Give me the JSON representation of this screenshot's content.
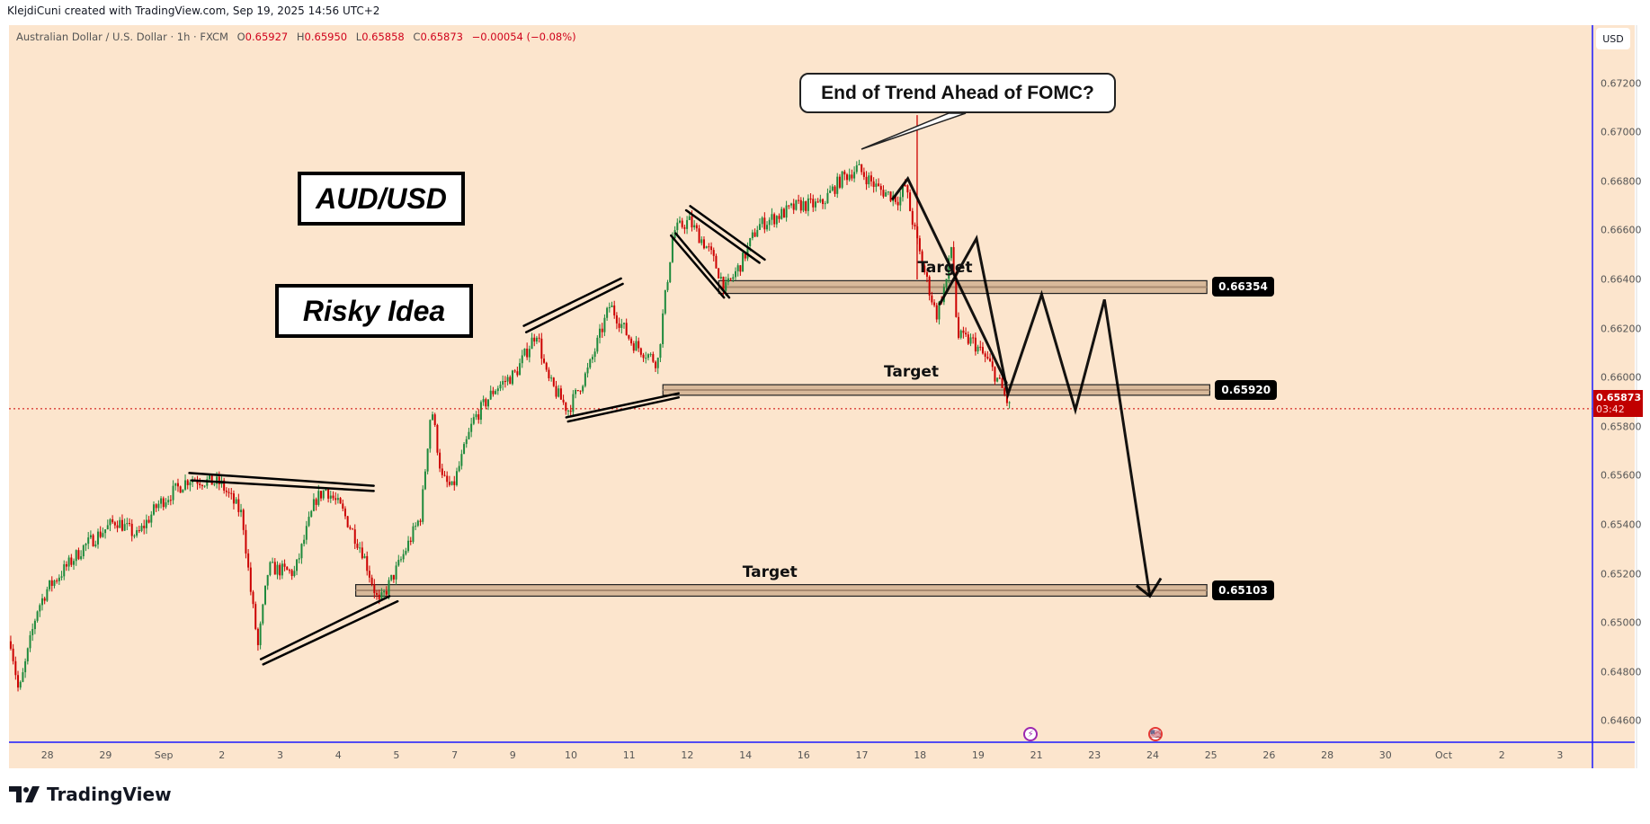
{
  "attribution": "KlejdiCuni created with TradingView.com, Sep 19, 2025 14:56 UTC+2",
  "legend": {
    "symbol": "Australian Dollar / U.S. Dollar · 1h · FXCM",
    "open_label": "O",
    "open": "0.65927",
    "high_label": "H",
    "high": "0.65950",
    "low_label": "L",
    "low": "0.65858",
    "close_label": "C",
    "close": "0.65873",
    "change": "−0.00054 (−0.08%)"
  },
  "currency_button": "USD",
  "annotations": {
    "pair_title": "AUD/USD",
    "risk_note": "Risky Idea",
    "callout": "End of Trend Ahead of FOMC?",
    "target_label": "Target"
  },
  "current_price": {
    "value": "0.65873",
    "countdown": "03:42"
  },
  "levels": [
    {
      "label": "0.66354",
      "price": 0.66369,
      "top": 0.66395,
      "bottom": 0.66343,
      "start_day": 11.54,
      "end_day": 19.93
    },
    {
      "label": "0.65920",
      "price": 0.6595,
      "top": 0.65971,
      "bottom": 0.65928,
      "start_day": 10.58,
      "end_day": 19.98
    },
    {
      "label": "0.65103",
      "price": 0.65132,
      "top": 0.65156,
      "bottom": 0.65109,
      "start_day": 5.3,
      "end_day": 19.93
    }
  ],
  "events": [
    {
      "icon": "lightning-icon",
      "glyph": "⚡",
      "color": "#9c27b0",
      "day": 16.9
    },
    {
      "icon": "us-flag-icon",
      "glyph": "🇺🇸",
      "color": "#e53935",
      "day": 19.05
    }
  ],
  "colors": {
    "up": "#1e8a3c",
    "down": "#cc0000",
    "background": "#fce5cd",
    "zone": "#d8b99a",
    "accent": "#2962ff"
  },
  "footer_brand": "TradingView",
  "chart_data": {
    "type": "candlestick",
    "title": "Australian Dollar / U.S. Dollar · 1h · FXCM",
    "x_axis": {
      "tick_labels": [
        "28",
        "29",
        "Sep",
        "2",
        "3",
        "4",
        "5",
        "7",
        "9",
        "10",
        "11",
        "12",
        "14",
        "16",
        "17",
        "18",
        "19",
        "21",
        "23",
        "24",
        "25",
        "26",
        "28",
        "30",
        "Oct",
        "2",
        "3"
      ]
    },
    "y_axis": {
      "range": [
        0.6452,
        0.6732
      ],
      "tick_labels": [
        "0.67200",
        "0.67000",
        "0.66800",
        "0.66600",
        "0.66400",
        "0.66200",
        "0.66000",
        "0.65800",
        "0.65600",
        "0.65400",
        "0.65200",
        "0.65000",
        "0.64800",
        "0.64600"
      ]
    },
    "price_path": [
      [
        -0.63,
        0.64925
      ],
      [
        -0.49,
        0.64711
      ],
      [
        -0.18,
        0.65053
      ],
      [
        0,
        0.65139
      ],
      [
        0.63,
        0.65311
      ],
      [
        1.18,
        0.65418
      ],
      [
        1.54,
        0.65354
      ],
      [
        1.9,
        0.65482
      ],
      [
        2.44,
        0.65589
      ],
      [
        2.98,
        0.65568
      ],
      [
        3.35,
        0.65439
      ],
      [
        3.49,
        0.65139
      ],
      [
        3.62,
        0.64904
      ],
      [
        3.8,
        0.65225
      ],
      [
        4.25,
        0.65204
      ],
      [
        4.61,
        0.65504
      ],
      [
        4.79,
        0.65546
      ],
      [
        5.06,
        0.65461
      ],
      [
        5.42,
        0.65289
      ],
      [
        5.7,
        0.65075
      ],
      [
        6.06,
        0.65246
      ],
      [
        6.42,
        0.65439
      ],
      [
        6.6,
        0.65889
      ],
      [
        6.78,
        0.65589
      ],
      [
        6.96,
        0.65546
      ],
      [
        7.32,
        0.65825
      ],
      [
        7.69,
        0.65954
      ],
      [
        8.05,
        0.66018
      ],
      [
        8.41,
        0.66189
      ],
      [
        8.59,
        0.65996
      ],
      [
        8.95,
        0.65868
      ],
      [
        9.31,
        0.66039
      ],
      [
        9.67,
        0.66296
      ],
      [
        10.04,
        0.66146
      ],
      [
        10.49,
        0.66061
      ],
      [
        10.58,
        0.66254
      ],
      [
        10.76,
        0.66596
      ],
      [
        11.03,
        0.66639
      ],
      [
        11.39,
        0.66511
      ],
      [
        11.66,
        0.66361
      ],
      [
        11.93,
        0.66468
      ],
      [
        12.21,
        0.66618
      ],
      [
        12.57,
        0.66661
      ],
      [
        12.93,
        0.66704
      ],
      [
        13.29,
        0.66704
      ],
      [
        13.65,
        0.66811
      ],
      [
        13.92,
        0.66854
      ],
      [
        14.29,
        0.66768
      ],
      [
        14.65,
        0.66725
      ],
      [
        14.74,
        0.66789
      ],
      [
        14.83,
        0.66682
      ],
      [
        15.01,
        0.66489
      ],
      [
        15.28,
        0.66254
      ],
      [
        15.46,
        0.66404
      ],
      [
        15.55,
        0.66554
      ],
      [
        15.64,
        0.66168
      ],
      [
        15.91,
        0.66146
      ],
      [
        16.18,
        0.66061
      ],
      [
        16.37,
        0.65975
      ],
      [
        16.55,
        0.65873
      ]
    ],
    "spike": {
      "day": 14.95,
      "high": 0.6707,
      "low": 0.664
    },
    "trendlines": [
      [
        [
          2.44,
          0.65611
        ],
        [
          5.61,
          0.65559
        ]
      ],
      [
        [
          2.48,
          0.65581
        ],
        [
          5.61,
          0.65538
        ]
      ],
      [
        [
          3.67,
          0.64852
        ],
        [
          5.88,
          0.65109
        ]
      ],
      [
        [
          3.71,
          0.64831
        ],
        [
          6.02,
          0.65088
        ]
      ],
      [
        [
          8.19,
          0.66211
        ],
        [
          9.86,
          0.66404
        ]
      ],
      [
        [
          8.23,
          0.66185
        ],
        [
          9.89,
          0.66382
        ]
      ],
      [
        [
          8.92,
          0.65838
        ],
        [
          10.85,
          0.65936
        ]
      ],
      [
        [
          8.95,
          0.65821
        ],
        [
          10.85,
          0.65919
        ]
      ],
      [
        [
          10.8,
          0.66588
        ],
        [
          11.72,
          0.66326
        ]
      ],
      [
        [
          10.72,
          0.66579
        ],
        [
          11.63,
          0.66326
        ]
      ],
      [
        [
          11.05,
          0.66699
        ],
        [
          12.33,
          0.66481
        ]
      ],
      [
        [
          10.98,
          0.66682
        ],
        [
          12.24,
          0.66468
        ]
      ]
    ],
    "projection": [
      [
        [
          14.52,
          0.66725
        ],
        [
          14.79,
          0.66811
        ],
        [
          16.49,
          0.65975
        ]
      ],
      [
        [
          15.33,
          0.66296
        ],
        [
          15.97,
          0.66567
        ],
        [
          16.51,
          0.65932
        ],
        [
          17.09,
          0.66339
        ],
        [
          17.67,
          0.65868
        ],
        [
          18.17,
          0.66318
        ],
        [
          18.95,
          0.65109
        ]
      ],
      [
        [
          18.72,
          0.65152
        ],
        [
          18.95,
          0.65109
        ],
        [
          19.14,
          0.65182
        ]
      ]
    ]
  }
}
